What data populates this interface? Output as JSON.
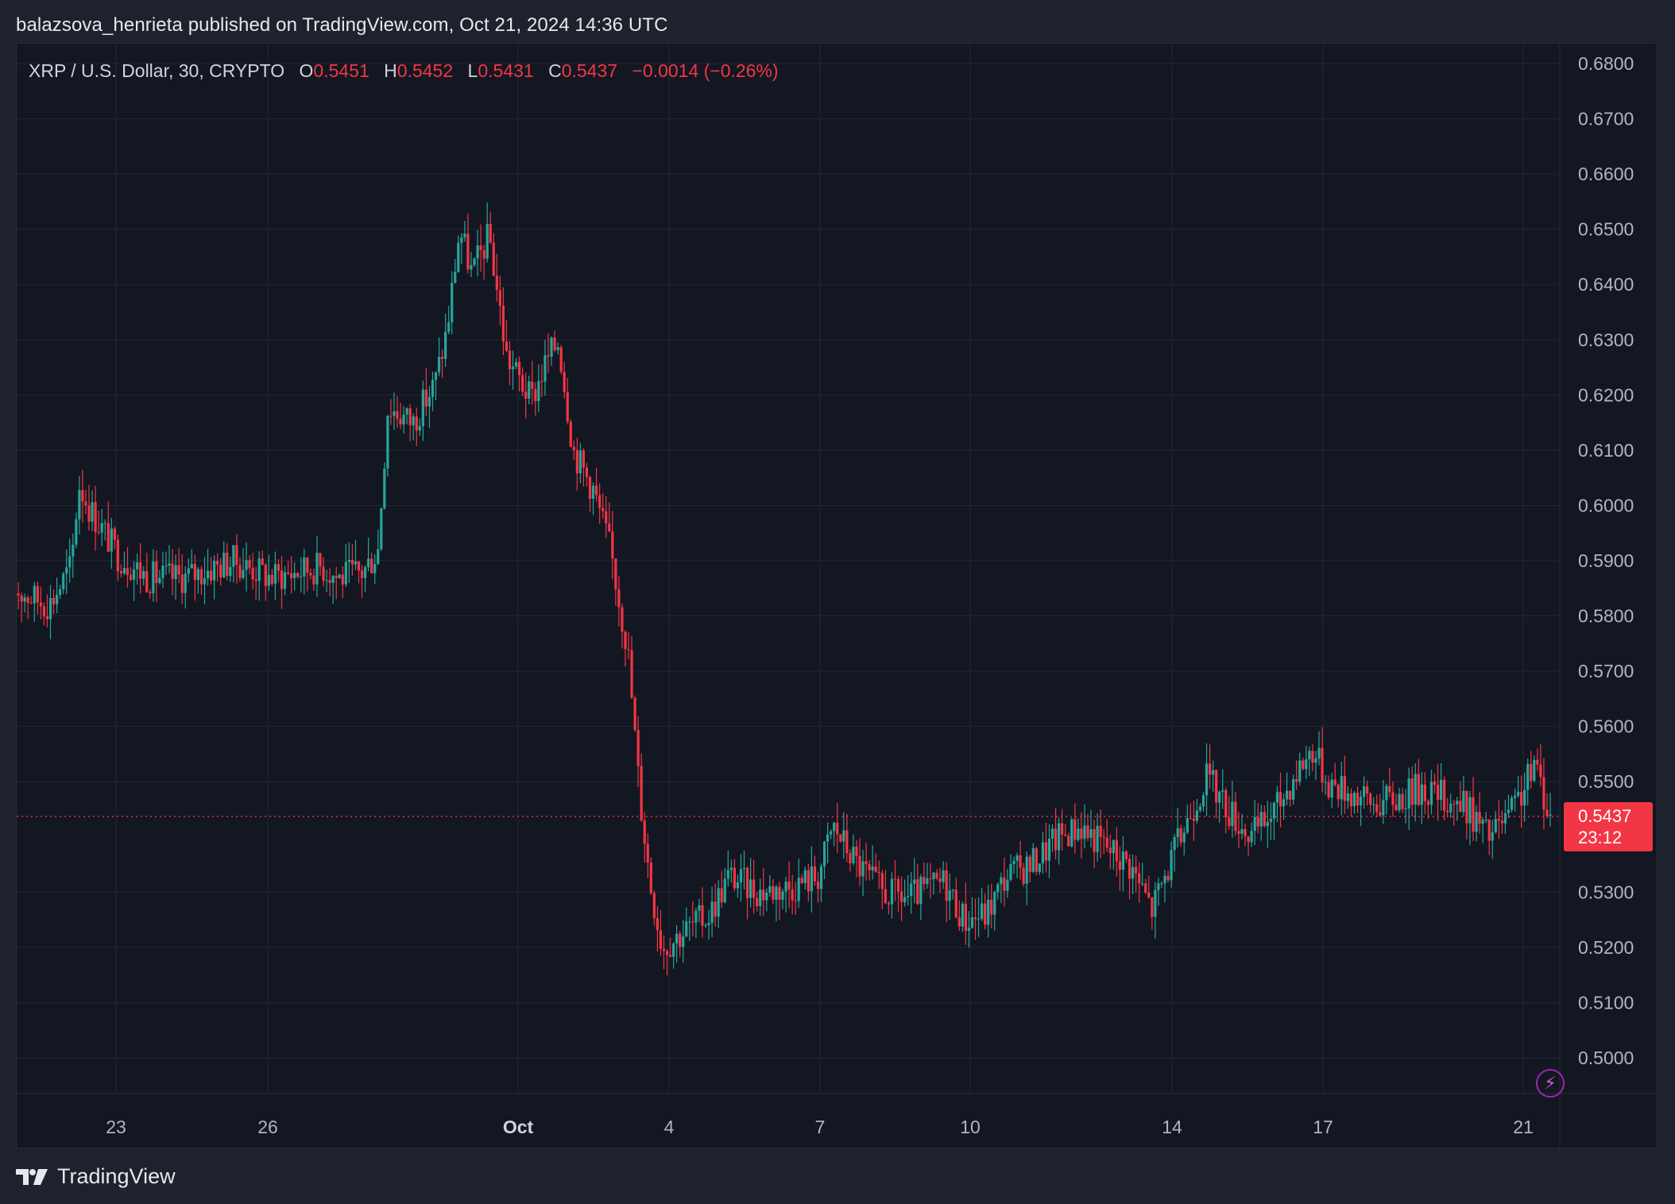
{
  "caption": "balazsova_henrieta published on TradingView.com, Oct 21, 2024 14:36 UTC",
  "legend": {
    "symbol": "XRP / U.S. Dollar, 30, CRYPTO",
    "o_label": "O",
    "o_value": "0.5451",
    "h_label": "H",
    "h_value": "0.5452",
    "l_label": "L",
    "l_value": "0.5431",
    "c_label": "C",
    "c_value": "0.5437",
    "change": "−0.0014 (−0.26%)"
  },
  "price_tag": {
    "price": "0.5437",
    "countdown": "23:12"
  },
  "footer": {
    "brand": "TradingView"
  },
  "colors": {
    "up": "#26a69a",
    "down": "#f23645",
    "background": "#131722",
    "grid": "#232733",
    "text": "#b2b5be"
  },
  "icons": {
    "alert": "lightning-bolt-icon",
    "logo": "tradingview-logo-icon"
  },
  "chart_data": {
    "type": "candlestick",
    "interval": "30",
    "ylim": [
      0.492,
      0.682
    ],
    "y_ticks": [
      "0.6800",
      "0.6700",
      "0.6600",
      "0.6500",
      "0.6400",
      "0.6300",
      "0.6200",
      "0.6100",
      "0.6000",
      "0.5900",
      "0.5800",
      "0.5700",
      "0.5600",
      "0.5500",
      "0.5300",
      "0.5200",
      "0.5100",
      "0.5000"
    ],
    "x_ticks": [
      "23",
      "26",
      "Oct",
      "4",
      "7",
      "10",
      "14",
      "17",
      "21"
    ],
    "last_price": 0.5437,
    "path": [
      [
        0,
        0.585
      ],
      [
        1.5,
        0.582
      ],
      [
        2.4,
        0.589
      ],
      [
        2.7,
        0.604
      ],
      [
        3.2,
        0.599
      ],
      [
        4.3,
        0.591
      ],
      [
        5.5,
        0.587
      ],
      [
        7.0,
        0.587
      ],
      [
        8.3,
        0.589
      ],
      [
        9.0,
        0.59
      ],
      [
        10.5,
        0.587
      ],
      [
        12.5,
        0.589
      ],
      [
        13.2,
        0.587
      ],
      [
        14.2,
        0.588
      ],
      [
        14.8,
        0.592
      ],
      [
        15.2,
        0.618
      ],
      [
        16.2,
        0.615
      ],
      [
        17.1,
        0.622
      ],
      [
        17.6,
        0.632
      ],
      [
        18.1,
        0.65
      ],
      [
        18.6,
        0.642
      ],
      [
        19.3,
        0.649
      ],
      [
        20.0,
        0.627
      ],
      [
        21.0,
        0.619
      ],
      [
        21.6,
        0.626
      ],
      [
        22.1,
        0.63
      ],
      [
        22.7,
        0.61
      ],
      [
        23.5,
        0.603
      ],
      [
        24.2,
        0.592
      ],
      [
        24.9,
        0.574
      ],
      [
        25.4,
        0.547
      ],
      [
        25.8,
        0.532
      ],
      [
        26.3,
        0.52
      ],
      [
        27.2,
        0.523
      ],
      [
        28.2,
        0.526
      ],
      [
        29.0,
        0.533
      ],
      [
        30.2,
        0.53
      ],
      [
        31.5,
        0.531
      ],
      [
        32.6,
        0.533
      ],
      [
        33.2,
        0.542
      ],
      [
        34.2,
        0.535
      ],
      [
        35.2,
        0.53
      ],
      [
        36.3,
        0.529
      ],
      [
        37.7,
        0.532
      ],
      [
        38.5,
        0.525
      ],
      [
        39.4,
        0.526
      ],
      [
        40.2,
        0.533
      ],
      [
        41.2,
        0.535
      ],
      [
        42.3,
        0.54
      ],
      [
        43.2,
        0.542
      ],
      [
        44.3,
        0.538
      ],
      [
        45.2,
        0.535
      ],
      [
        46.1,
        0.527
      ],
      [
        46.9,
        0.536
      ],
      [
        47.7,
        0.545
      ],
      [
        48.3,
        0.551
      ],
      [
        49.2,
        0.545
      ],
      [
        50.1,
        0.54
      ],
      [
        51.1,
        0.545
      ],
      [
        52.1,
        0.553
      ],
      [
        52.6,
        0.556
      ],
      [
        53.2,
        0.55
      ],
      [
        54.2,
        0.548
      ],
      [
        55.0,
        0.546
      ],
      [
        56.0,
        0.547
      ],
      [
        57.0,
        0.549
      ],
      [
        58.0,
        0.547
      ],
      [
        58.9,
        0.545
      ],
      [
        59.7,
        0.54
      ],
      [
        60.6,
        0.544
      ],
      [
        61.6,
        0.553
      ],
      [
        62.2,
        0.5437
      ]
    ]
  }
}
